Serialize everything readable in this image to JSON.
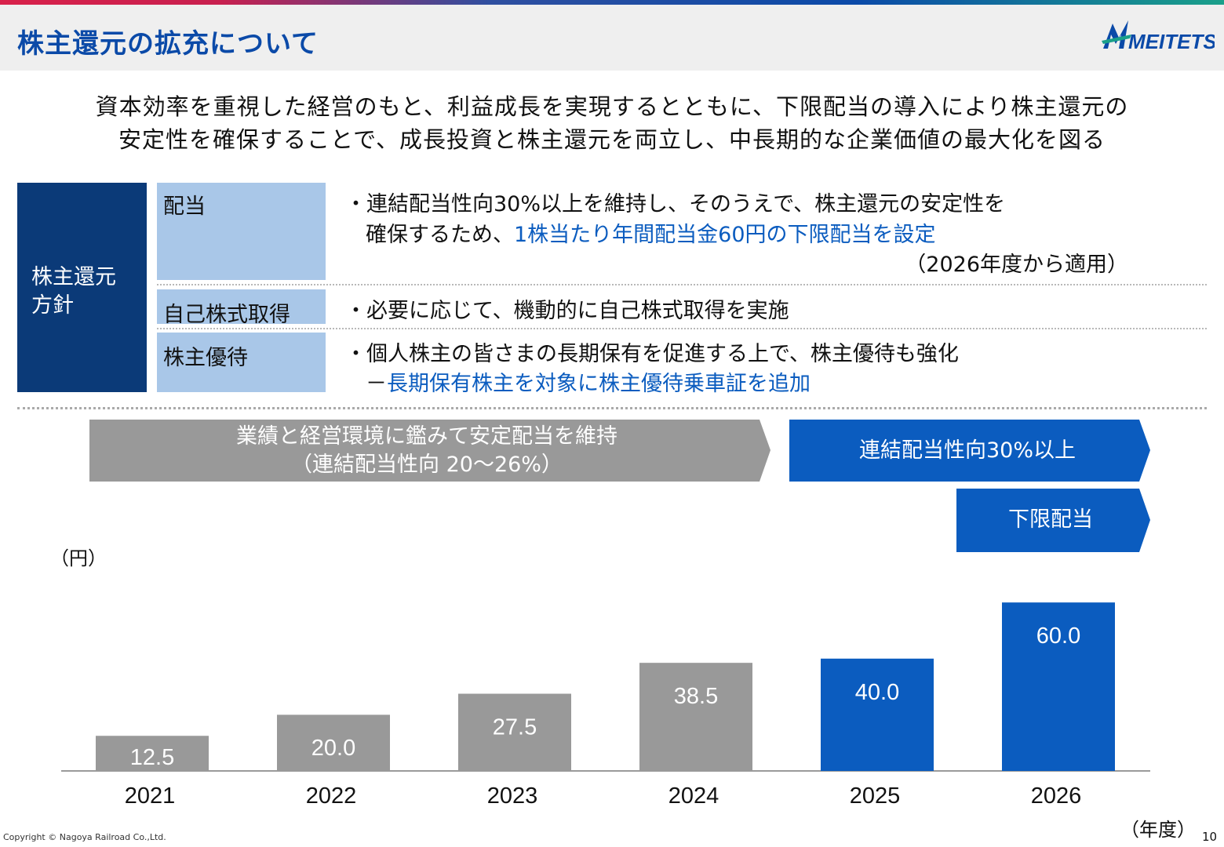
{
  "header": {
    "title": "株主還元の拡充について",
    "logo_text": "MEITETSU"
  },
  "lead": {
    "line1": "資本効率を重視した経営のもと、利益成長を実現するとともに、下限配当の導入により株主還元の",
    "line2": "安定性を確保することで、成長投資と株主還元を両立し、中長期的な企業価値の最大化を図る"
  },
  "policy": {
    "label_line1": "株主還元",
    "label_line2": "方針",
    "rows": [
      {
        "category": "配当",
        "line1": "・連結配当性向30%以上を維持し、そのうえで、株主還元の安定性を",
        "line2_plain": "確保するため、",
        "line2_blue": "1株当たり年間配当金60円の下限配当を設定",
        "line3": "（2026年度から適用）"
      },
      {
        "category": "自己株式取得",
        "line1": "・必要に応じて、機動的に自己株式取得を実施"
      },
      {
        "category": "株主優待",
        "line1": "・個人株主の皆さまの長期保有を促進する上で、株主優待も強化",
        "line2_dash": "－",
        "line2_blue": "長期保有株主を対象に株主優待乗車証を追加"
      }
    ]
  },
  "arrows": {
    "gray_line1": "業績と経営環境に鑑みて安定配当を維持",
    "gray_line2": "（連結配当性向 20～26%）",
    "blue1": "連結配当性向30%以上",
    "blue2": "下限配当"
  },
  "colors": {
    "accent_blue": "#0b5cbf",
    "navy": "#0b3a78",
    "gray_bar": "#999999",
    "light_blue": "#a9c7e8"
  },
  "chart_data": {
    "type": "bar",
    "categories": [
      "2021",
      "2022",
      "2023",
      "2024",
      "2025",
      "2026"
    ],
    "values": [
      12.5,
      20.0,
      27.5,
      38.5,
      40.0,
      60.0
    ],
    "labels": [
      "12.5",
      "20.0",
      "27.5",
      "38.5",
      "40.0",
      "60.0"
    ],
    "bar_colors": [
      "#999999",
      "#999999",
      "#999999",
      "#999999",
      "#0b5cbf",
      "#0b5cbf"
    ],
    "y_unit": "（円）",
    "x_unit": "（年度）",
    "ylim": [
      0,
      65
    ],
    "grid": false
  },
  "footer": {
    "copyright": "Copyright © Nagoya Railroad Co.,Ltd.",
    "page_number": "10"
  }
}
